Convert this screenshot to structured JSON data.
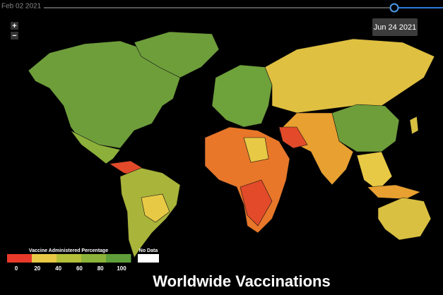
{
  "slider": {
    "start": "Feb 02 2021",
    "current": "Jun 24 2021"
  },
  "zoom": {
    "in": "+",
    "out": "−"
  },
  "legend": {
    "title": "Vaccine Administered Percentage",
    "ticks": [
      0,
      20,
      40,
      60,
      80,
      100
    ],
    "colors": [
      "#e8392a",
      "#e8c945",
      "#b5c03a",
      "#8db43a",
      "#5f9e3a"
    ],
    "no_data": "No Data",
    "no_data_color": "#ffffff"
  },
  "title": "Worldwide Vaccinations"
}
